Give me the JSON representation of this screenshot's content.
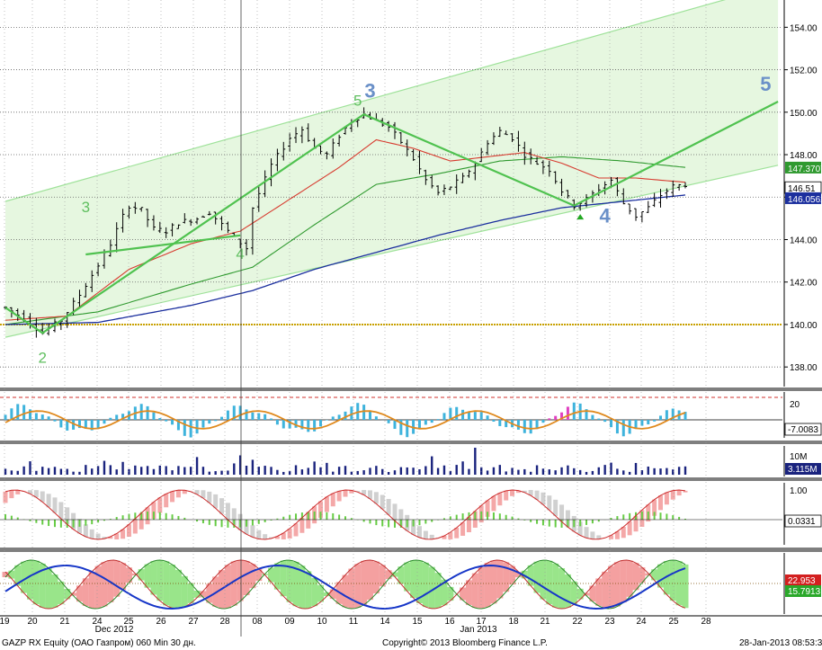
{
  "footer": {
    "ticker": "GAZP RX Equity (ОАО Газпром) 060 Min 30 дн.",
    "copyright": "Copyright© 2013 Bloomberg Finance L.P.",
    "timestamp": "28-Jan-2013 08:53:36"
  },
  "colors": {
    "channel_fill": "#e6f7e0",
    "channel_line": "#9fe29a",
    "wave_line": "#4fc24f",
    "ma_red": "#d73a2e",
    "ma_green": "#2f9a2f",
    "ma_blue": "#1b2f9e",
    "level_140": "#c8a000",
    "wave_label_green": "#5fbf5f",
    "wave_label_blue": "#6a90c8",
    "separator": "#7f7f7f"
  },
  "chart_data": [
    {
      "panel": "price",
      "type": "candlestick",
      "y_ticks": [
        "138.00",
        "140.00",
        "142.00",
        "144.00",
        "146.00",
        "148.00",
        "150.00",
        "152.00",
        "154.00"
      ],
      "ylim": [
        137.5,
        155.2
      ],
      "x_tick_labels": [
        "19",
        "20",
        "21",
        "24",
        "25",
        "26",
        "27",
        "28",
        "08",
        "09",
        "10",
        "11",
        "14",
        "15",
        "16",
        "17",
        "18",
        "21",
        "22",
        "23",
        "24",
        "25",
        "28"
      ],
      "month_labels": [
        "Dec 2012",
        "Jan 2013"
      ],
      "last_values": [
        {
          "label": "147.3707",
          "series": "ma_green"
        },
        {
          "label": "146.51",
          "series": "price"
        },
        {
          "label": "146.0562",
          "series": "ma_blue"
        }
      ],
      "price_path": [
        [
          0,
          140.8
        ],
        [
          3,
          140.3
        ],
        [
          6,
          139.6
        ],
        [
          9,
          140.2
        ],
        [
          12,
          141.4
        ],
        [
          15,
          142.8
        ],
        [
          17,
          143.8
        ],
        [
          19,
          145.1
        ],
        [
          20,
          145.6
        ],
        [
          22,
          145.4
        ],
        [
          24,
          144.5
        ],
        [
          26,
          144.4
        ],
        [
          28,
          144.8
        ],
        [
          31,
          145.0
        ],
        [
          33,
          145.3
        ],
        [
          35,
          144.7
        ],
        [
          37,
          144.1
        ],
        [
          39,
          143.6
        ],
        [
          40,
          145.5
        ],
        [
          43,
          147.5
        ],
        [
          46,
          148.8
        ],
        [
          48,
          149.2
        ],
        [
          50,
          148.3
        ],
        [
          52,
          148.0
        ],
        [
          54,
          148.9
        ],
        [
          56,
          149.6
        ],
        [
          58,
          149.9
        ],
        [
          60,
          149.6
        ],
        [
          62,
          149.3
        ],
        [
          64,
          148.6
        ],
        [
          66,
          147.8
        ],
        [
          68,
          146.8
        ],
        [
          70,
          146.2
        ],
        [
          72,
          146.5
        ],
        [
          74,
          146.9
        ],
        [
          76,
          147.6
        ],
        [
          78,
          148.6
        ],
        [
          80,
          149.1
        ],
        [
          82,
          148.8
        ],
        [
          84,
          148.0
        ],
        [
          86,
          147.6
        ],
        [
          88,
          147.3
        ],
        [
          90,
          146.3
        ],
        [
          92,
          145.6
        ],
        [
          94,
          145.9
        ],
        [
          96,
          146.4
        ],
        [
          98,
          146.8
        ],
        [
          100,
          145.7
        ],
        [
          102,
          145.1
        ],
        [
          104,
          145.5
        ],
        [
          106,
          146.1
        ],
        [
          108,
          146.5
        ],
        [
          110,
          146.6
        ]
      ],
      "wave_lines": [
        [
          [
            0,
            140.8
          ],
          [
            6,
            139.6
          ],
          [
            58,
            149.9
          ],
          [
            92,
            145.6
          ],
          [
            125,
            150.5
          ]
        ],
        [
          [
            13,
            143.3
          ],
          [
            38,
            144.2
          ]
        ]
      ],
      "channel": {
        "lower": [
          [
            0,
            139.4
          ],
          [
            125,
            147.5
          ]
        ],
        "upper": [
          [
            0,
            145.8
          ],
          [
            125,
            156.0
          ]
        ]
      },
      "level_line": 140.0,
      "ma_red": [
        [
          0,
          140.2
        ],
        [
          10,
          140.4
        ],
        [
          20,
          142.6
        ],
        [
          30,
          143.8
        ],
        [
          38,
          144.4
        ],
        [
          46,
          145.9
        ],
        [
          54,
          147.4
        ],
        [
          60,
          148.7
        ],
        [
          66,
          148.3
        ],
        [
          72,
          147.7
        ],
        [
          78,
          147.9
        ],
        [
          84,
          148.1
        ],
        [
          90,
          147.6
        ],
        [
          96,
          146.9
        ],
        [
          102,
          146.9
        ],
        [
          110,
          146.7
        ]
      ],
      "ma_green": [
        [
          0,
          140.0
        ],
        [
          15,
          140.6
        ],
        [
          30,
          141.9
        ],
        [
          40,
          142.7
        ],
        [
          50,
          144.7
        ],
        [
          60,
          146.6
        ],
        [
          70,
          147.1
        ],
        [
          80,
          147.7
        ],
        [
          90,
          147.9
        ],
        [
          100,
          147.7
        ],
        [
          110,
          147.4
        ]
      ],
      "ma_blue": [
        [
          0,
          140.0
        ],
        [
          15,
          140.1
        ],
        [
          30,
          140.9
        ],
        [
          40,
          141.6
        ],
        [
          50,
          142.6
        ],
        [
          60,
          143.4
        ],
        [
          70,
          144.2
        ],
        [
          80,
          144.9
        ],
        [
          90,
          145.5
        ],
        [
          100,
          145.8
        ],
        [
          110,
          146.1
        ]
      ],
      "annotations": [
        {
          "text": "2",
          "x": 6,
          "y": 138.2,
          "style": "green"
        },
        {
          "text": "3",
          "x": 13,
          "y": 145.3,
          "style": "green"
        },
        {
          "text": "4",
          "x": 38,
          "y": 143.1,
          "style": "green"
        },
        {
          "text": "5",
          "x": 57,
          "y": 150.3,
          "style": "green"
        },
        {
          "text": "3",
          "x": 59,
          "y": 150.7,
          "style": "blue"
        },
        {
          "text": "4",
          "x": 97,
          "y": 144.8,
          "style": "blue"
        },
        {
          "text": "5",
          "x": 123,
          "y": 151.0,
          "style": "blue"
        }
      ],
      "peak_bars": [
        [
          0,
          140.7
        ],
        [
          16,
          143.4
        ],
        [
          22,
          145.1
        ],
        [
          40,
          146.2
        ],
        [
          56,
          149.7
        ],
        [
          78,
          149.0
        ],
        [
          92,
          145.6
        ],
        [
          108,
          146.6
        ]
      ]
    },
    {
      "panel": "oscillator",
      "type": "histogram",
      "y_ticks": [
        "20"
      ],
      "last_values": [
        {
          "label": "-7.0083",
          "series": "signal"
        }
      ],
      "values_period": 6
    },
    {
      "panel": "volume",
      "type": "bar",
      "y_ticks": [
        "10M"
      ],
      "last_values": [
        {
          "label": "3.115M",
          "series": "volume"
        }
      ]
    },
    {
      "panel": "stochastic",
      "type": "area",
      "y_ticks": [
        "1.00"
      ],
      "last_values": [
        {
          "label": "0.0331",
          "series": "k"
        }
      ]
    },
    {
      "panel": "dmi",
      "type": "area",
      "y_ticks": [],
      "last_values": [
        {
          "label": "22.953",
          "series": "red"
        },
        {
          "label": "15.7913",
          "series": "green"
        }
      ]
    }
  ]
}
